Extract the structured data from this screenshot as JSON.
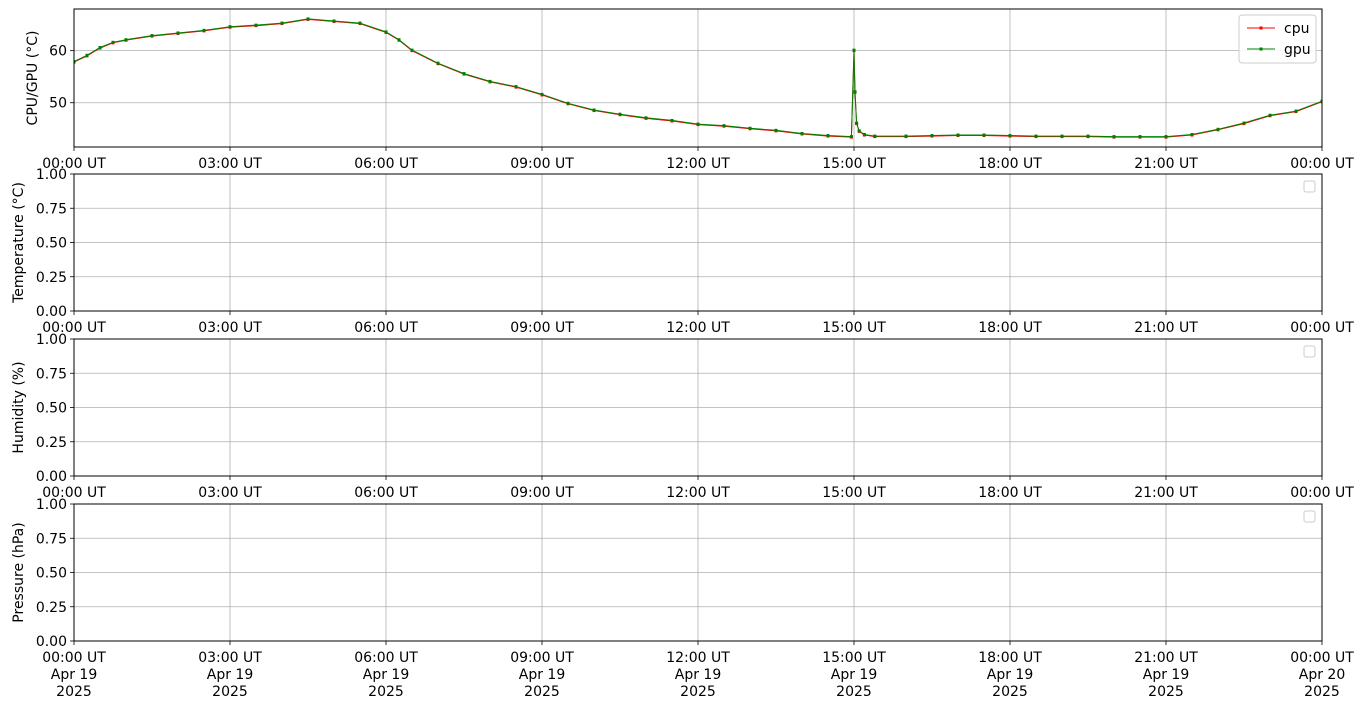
{
  "time_axis": {
    "ticks": [
      {
        "time": "00:00 UT",
        "date": "Apr 19",
        "year": "2025"
      },
      {
        "time": "03:00 UT",
        "date": "Apr 19",
        "year": "2025"
      },
      {
        "time": "06:00 UT",
        "date": "Apr 19",
        "year": "2025"
      },
      {
        "time": "09:00 UT",
        "date": "Apr 19",
        "year": "2025"
      },
      {
        "time": "12:00 UT",
        "date": "Apr 19",
        "year": "2025"
      },
      {
        "time": "15:00 UT",
        "date": "Apr 19",
        "year": "2025"
      },
      {
        "time": "18:00 UT",
        "date": "Apr 19",
        "year": "2025"
      },
      {
        "time": "21:00 UT",
        "date": "Apr 19",
        "year": "2025"
      },
      {
        "time": "00:00 UT",
        "date": "Apr 20",
        "year": "2025"
      }
    ],
    "xlim": [
      "2025-04-19 00:00",
      "2025-04-20 00:00"
    ]
  },
  "colors": {
    "cpu": "#ff0000",
    "gpu": "#008000",
    "grid": "#b0b0b0"
  },
  "chart_data": [
    {
      "type": "line",
      "ylabel": "CPU/GPU (°C)",
      "ylim": [
        41.5,
        68
      ],
      "yticks": [
        50,
        60
      ],
      "ytick_labels": [
        "50",
        "60"
      ],
      "grid": true,
      "legend": "top-right",
      "x_unit": "hours UT since 2025-04-19 00:00",
      "series": [
        {
          "name": "cpu",
          "x": [
            0,
            0.25,
            0.5,
            0.75,
            1,
            1.5,
            2,
            2.5,
            3,
            3.5,
            4,
            4.5,
            5,
            5.5,
            6,
            6.25,
            6.5,
            7,
            7.5,
            8,
            8.5,
            9,
            9.5,
            10,
            10.5,
            11,
            11.5,
            12,
            12.5,
            13,
            13.5,
            14,
            14.5,
            14.95,
            15.0,
            15.02,
            15.05,
            15.1,
            15.2,
            15.4,
            16,
            16.5,
            17,
            17.5,
            18,
            18.5,
            19,
            19.5,
            20,
            20.5,
            21,
            21.5,
            22,
            22.5,
            23,
            23.5,
            24
          ],
          "y": [
            57.8,
            59,
            60.5,
            61.5,
            62,
            62.8,
            63.3,
            63.8,
            64.5,
            64.8,
            65.2,
            66,
            65.6,
            65.2,
            63.5,
            62,
            60,
            57.5,
            55.5,
            54,
            53,
            51.5,
            49.8,
            48.5,
            47.7,
            47,
            46.5,
            45.8,
            45.5,
            45,
            44.6,
            44,
            43.6,
            43.4,
            60,
            52,
            46,
            44.5,
            43.8,
            43.5,
            43.5,
            43.6,
            43.7,
            43.7,
            43.6,
            43.5,
            43.5,
            43.5,
            43.4,
            43.4,
            43.4,
            43.8,
            44.8,
            46,
            47.5,
            48.3,
            50.2
          ]
        },
        {
          "name": "gpu",
          "x": [
            0,
            0.25,
            0.5,
            0.75,
            1,
            1.5,
            2,
            2.5,
            3,
            3.5,
            4,
            4.5,
            5,
            5.5,
            6,
            6.25,
            6.5,
            7,
            7.5,
            8,
            8.5,
            9,
            9.5,
            10,
            10.5,
            11,
            11.5,
            12,
            12.5,
            13,
            13.5,
            14,
            14.5,
            14.95,
            15.0,
            15.02,
            15.05,
            15.1,
            15.2,
            15.4,
            16,
            16.5,
            17,
            17.5,
            18,
            18.5,
            19,
            19.5,
            20,
            20.5,
            21,
            21.5,
            22,
            22.5,
            23,
            23.5,
            24
          ],
          "y": [
            57.9,
            59.1,
            60.6,
            61.6,
            62.1,
            62.9,
            63.4,
            63.9,
            64.6,
            64.9,
            65.3,
            66.1,
            65.7,
            65.3,
            63.6,
            62.1,
            60.1,
            57.6,
            55.6,
            54.1,
            53.1,
            51.6,
            49.9,
            48.6,
            47.8,
            47.1,
            46.6,
            45.9,
            45.6,
            45.1,
            44.7,
            44.1,
            43.7,
            43.5,
            60.1,
            52.1,
            46.1,
            44.6,
            43.9,
            43.6,
            43.6,
            43.7,
            43.8,
            43.8,
            43.7,
            43.6,
            43.6,
            43.6,
            43.5,
            43.5,
            43.5,
            43.9,
            44.9,
            46.1,
            47.6,
            48.4,
            50.3
          ]
        }
      ]
    },
    {
      "type": "line",
      "ylabel": "Temperature (°C)",
      "ylim": [
        0,
        1
      ],
      "yticks": [
        0,
        0.25,
        0.5,
        0.75,
        1
      ],
      "ytick_labels": [
        "0.00",
        "0.25",
        "0.50",
        "0.75",
        "1.00"
      ],
      "grid": true,
      "legend": "top-right (empty)",
      "series": []
    },
    {
      "type": "line",
      "ylabel": "Humidity (%)",
      "ylim": [
        0,
        1
      ],
      "yticks": [
        0,
        0.25,
        0.5,
        0.75,
        1
      ],
      "ytick_labels": [
        "0.00",
        "0.25",
        "0.50",
        "0.75",
        "1.00"
      ],
      "grid": true,
      "legend": "top-right (empty)",
      "series": []
    },
    {
      "type": "line",
      "ylabel": "Pressure (hPa)",
      "ylim": [
        0,
        1
      ],
      "yticks": [
        0,
        0.25,
        0.5,
        0.75,
        1
      ],
      "ytick_labels": [
        "0.00",
        "0.25",
        "0.50",
        "0.75",
        "1.00"
      ],
      "grid": true,
      "legend": "top-right (empty)",
      "series": []
    }
  ]
}
